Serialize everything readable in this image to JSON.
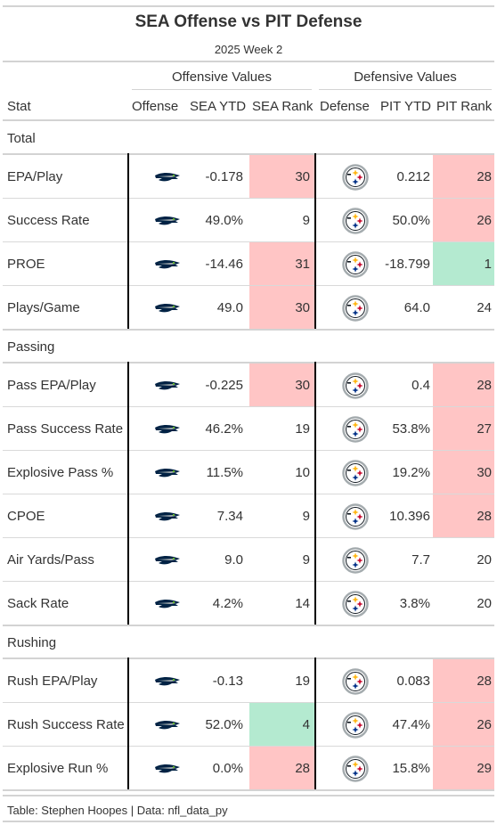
{
  "title": "SEA Offense vs PIT Defense",
  "subtitle": "2025 Week 2",
  "spanners": {
    "offense": "Offensive Values",
    "defense": "Defensive Values"
  },
  "columns": {
    "stat": "Stat",
    "offense": "Offense",
    "sea_ytd": "SEA YTD",
    "sea_rank": "SEA Rank",
    "defense": "Defense",
    "pit_ytd": "PIT YTD",
    "pit_rank": "PIT Rank"
  },
  "colors": {
    "bad": "#ffc5c5",
    "good": "#b4ead0",
    "sea_navy": "#002244",
    "sea_green": "#69be28",
    "pit_gold": "#ffb612",
    "pit_red": "#c60c30",
    "pit_blue": "#003087"
  },
  "groups": [
    {
      "label": "Total",
      "rows": [
        {
          "stat": "EPA/Play",
          "sea_ytd": "-0.178",
          "sea_rank": "30",
          "sea_rank_color": "bad",
          "pit_ytd": "0.212",
          "pit_rank": "28",
          "pit_rank_color": "bad"
        },
        {
          "stat": "Success Rate",
          "sea_ytd": "49.0%",
          "sea_rank": "9",
          "sea_rank_color": "",
          "pit_ytd": "50.0%",
          "pit_rank": "26",
          "pit_rank_color": "bad"
        },
        {
          "stat": "PROE",
          "sea_ytd": "-14.46",
          "sea_rank": "31",
          "sea_rank_color": "bad",
          "pit_ytd": "-18.799",
          "pit_rank": "1",
          "pit_rank_color": "good"
        },
        {
          "stat": "Plays/Game",
          "sea_ytd": "49.0",
          "sea_rank": "30",
          "sea_rank_color": "bad",
          "pit_ytd": "64.0",
          "pit_rank": "24",
          "pit_rank_color": ""
        }
      ]
    },
    {
      "label": "Passing",
      "rows": [
        {
          "stat": "Pass EPA/Play",
          "sea_ytd": "-0.225",
          "sea_rank": "30",
          "sea_rank_color": "bad",
          "pit_ytd": "0.4",
          "pit_rank": "28",
          "pit_rank_color": "bad"
        },
        {
          "stat": "Pass Success Rate",
          "sea_ytd": "46.2%",
          "sea_rank": "19",
          "sea_rank_color": "",
          "pit_ytd": "53.8%",
          "pit_rank": "27",
          "pit_rank_color": "bad"
        },
        {
          "stat": "Explosive Pass %",
          "sea_ytd": "11.5%",
          "sea_rank": "10",
          "sea_rank_color": "",
          "pit_ytd": "19.2%",
          "pit_rank": "30",
          "pit_rank_color": "bad"
        },
        {
          "stat": "CPOE",
          "sea_ytd": "7.34",
          "sea_rank": "9",
          "sea_rank_color": "",
          "pit_ytd": "10.396",
          "pit_rank": "28",
          "pit_rank_color": "bad"
        },
        {
          "stat": "Air Yards/Pass",
          "sea_ytd": "9.0",
          "sea_rank": "9",
          "sea_rank_color": "",
          "pit_ytd": "7.7",
          "pit_rank": "20",
          "pit_rank_color": ""
        },
        {
          "stat": "Sack Rate",
          "sea_ytd": "4.2%",
          "sea_rank": "14",
          "sea_rank_color": "",
          "pit_ytd": "3.8%",
          "pit_rank": "20",
          "pit_rank_color": ""
        }
      ]
    },
    {
      "label": "Rushing",
      "rows": [
        {
          "stat": "Rush EPA/Play",
          "sea_ytd": "-0.13",
          "sea_rank": "19",
          "sea_rank_color": "",
          "pit_ytd": "0.083",
          "pit_rank": "28",
          "pit_rank_color": "bad"
        },
        {
          "stat": "Rush Success Rate",
          "sea_ytd": "52.0%",
          "sea_rank": "4",
          "sea_rank_color": "good",
          "pit_ytd": "47.4%",
          "pit_rank": "26",
          "pit_rank_color": "bad"
        },
        {
          "stat": "Explosive Run %",
          "sea_ytd": "0.0%",
          "sea_rank": "28",
          "sea_rank_color": "bad",
          "pit_ytd": "15.8%",
          "pit_rank": "29",
          "pit_rank_color": "bad"
        }
      ]
    }
  ],
  "footer": "Table: Stephen Hoopes | Data: nfl_data_py",
  "icons": {
    "offense": "seahawks-logo-icon",
    "defense": "steelers-logo-icon"
  }
}
